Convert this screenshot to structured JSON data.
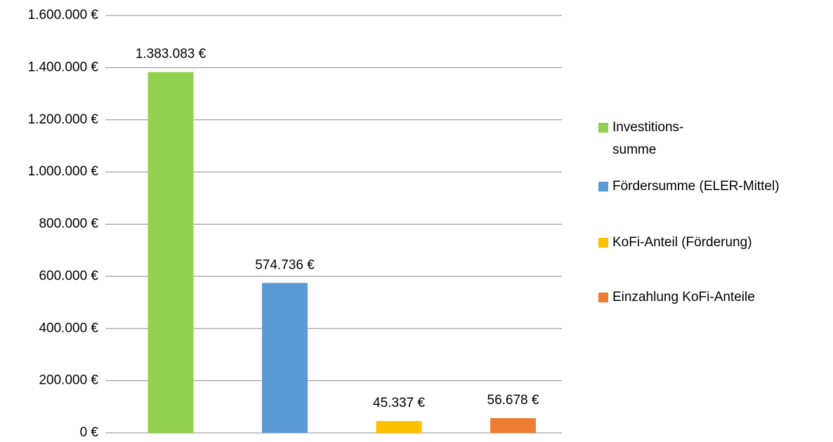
{
  "chart_data": {
    "type": "bar",
    "categories": [
      null
    ],
    "series": [
      {
        "name": "Investitions-\nsumme",
        "color": "#92d050",
        "values": [
          1383083
        ],
        "value_labels": [
          "1.383.083 €"
        ]
      },
      {
        "name": "Fördersumme (ELER-Mittel)",
        "color": "#5b9bd5",
        "values": [
          574736
        ],
        "value_labels": [
          "574.736 €"
        ]
      },
      {
        "name": "KoFi-Anteil (Förderung)",
        "color": "#ffc000",
        "values": [
          45337
        ],
        "value_labels": [
          "45.337 €"
        ]
      },
      {
        "name": "Einzahlung KoFi-Anteile",
        "color": "#ed7d31",
        "values": [
          56678
        ],
        "value_labels": [
          "56.678 €"
        ]
      }
    ],
    "ylim": [
      0,
      1600000
    ],
    "yticks": [
      {
        "value": 0,
        "label": "0 €"
      },
      {
        "value": 200000,
        "label": "200.000 €"
      },
      {
        "value": 400000,
        "label": "400.000 €"
      },
      {
        "value": 600000,
        "label": "600.000 €"
      },
      {
        "value": 800000,
        "label": "800.000 €"
      },
      {
        "value": 1000000,
        "label": "1.000.000 €"
      },
      {
        "value": 1200000,
        "label": "1.200.000 €"
      },
      {
        "value": 1400000,
        "label": "1.400.000 €"
      },
      {
        "value": 1600000,
        "label": "1.600.000 €"
      }
    ],
    "grid": true,
    "legend": "right"
  }
}
